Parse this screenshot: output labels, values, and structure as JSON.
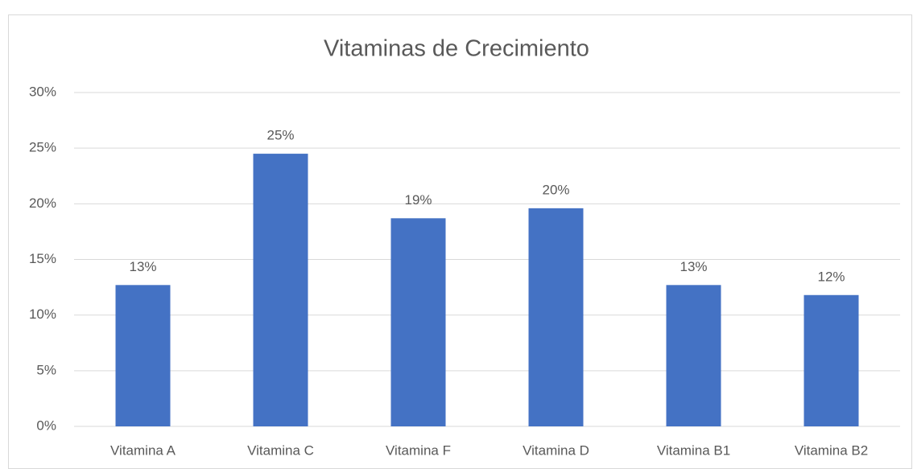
{
  "chart_data": {
    "type": "bar",
    "title": "Vitaminas de Crecimiento",
    "categories": [
      "Vitamina A",
      "Vitamina C",
      "Vitamina F",
      "Vitamina D",
      "Vitamina B1",
      "Vitamina B2"
    ],
    "values": [
      12.7,
      24.5,
      18.7,
      19.6,
      12.7,
      11.8
    ],
    "value_labels": [
      "13%",
      "25%",
      "19%",
      "20%",
      "13%",
      "12%"
    ],
    "color": "#4472c4",
    "ylim": [
      0,
      30
    ],
    "yticks": [
      {
        "value": 0,
        "label": "0%"
      },
      {
        "value": 5,
        "label": "5%"
      },
      {
        "value": 10,
        "label": "10%"
      },
      {
        "value": 15,
        "label": "15%"
      },
      {
        "value": 20,
        "label": "20%"
      },
      {
        "value": 25,
        "label": "25%"
      },
      {
        "value": 30,
        "label": "30%"
      }
    ],
    "grid": true
  }
}
